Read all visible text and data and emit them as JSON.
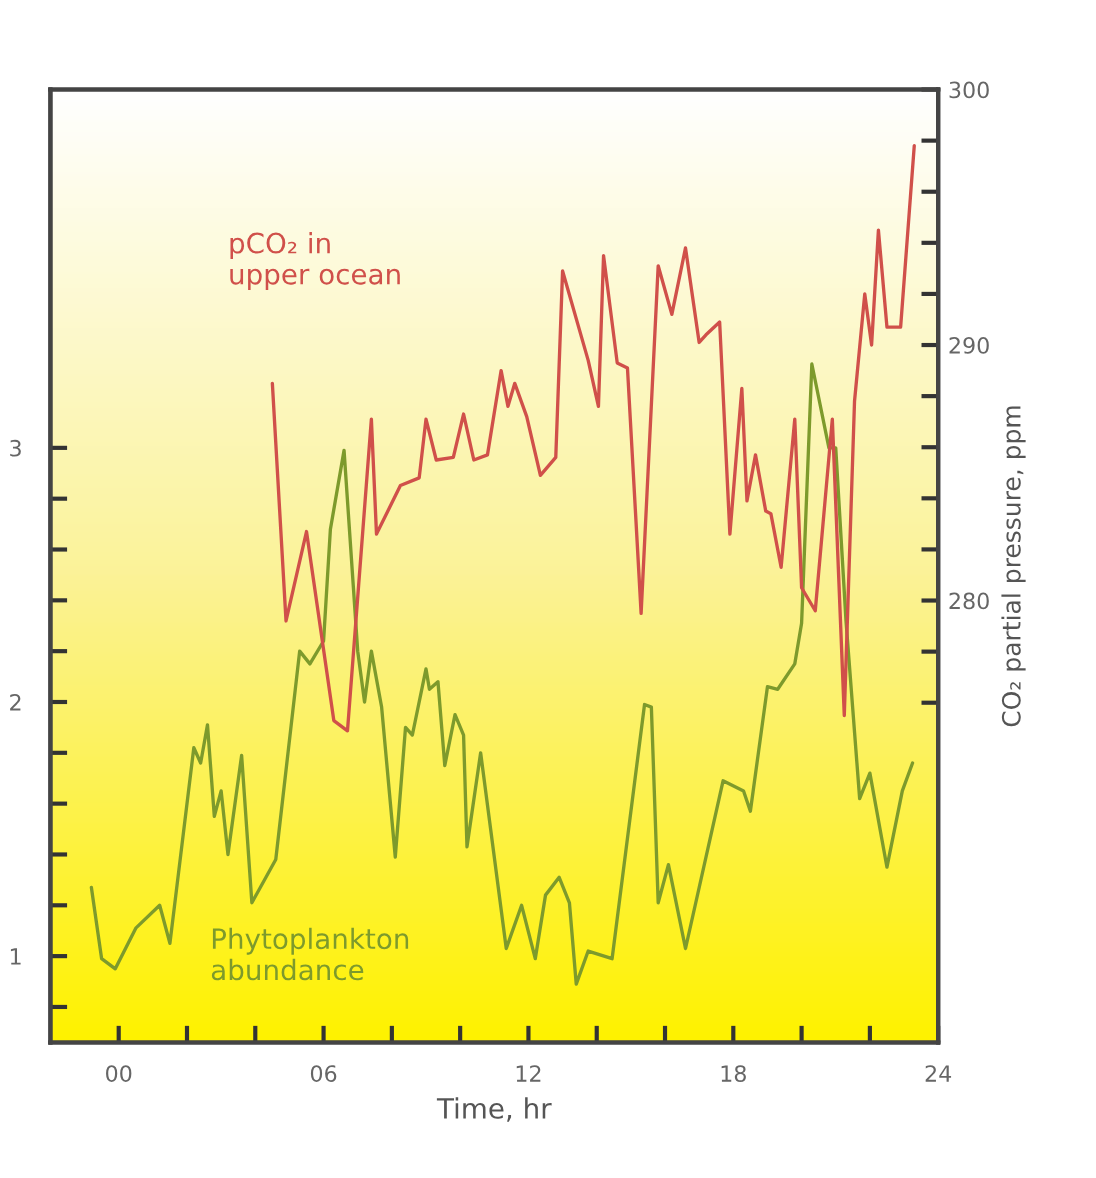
{
  "chart_data": {
    "type": "line",
    "xlabel": "Time, hr",
    "y2label": "CO₂ partial pressure, ppm",
    "xlim": [
      -2,
      24
    ],
    "xticks": [
      {
        "value": 0,
        "label": "00"
      },
      {
        "value": 2,
        "label": null
      },
      {
        "value": 4,
        "label": null
      },
      {
        "value": 6,
        "label": "06"
      },
      {
        "value": 8,
        "label": null
      },
      {
        "value": 10,
        "label": null
      },
      {
        "value": 12,
        "label": "12"
      },
      {
        "value": 14,
        "label": null
      },
      {
        "value": 16,
        "label": null
      },
      {
        "value": 18,
        "label": "18"
      },
      {
        "value": 20,
        "label": null
      },
      {
        "value": 22,
        "label": null
      },
      {
        "value": 24,
        "label": "24"
      }
    ],
    "ylim": [
      0.66,
      4.41
    ],
    "yticks": [
      {
        "value": 0.8,
        "label": null
      },
      {
        "value": 1,
        "label": "1"
      },
      {
        "value": 1.2,
        "label": null
      },
      {
        "value": 1.4,
        "label": null
      },
      {
        "value": 1.6,
        "label": null
      },
      {
        "value": 1.8,
        "label": null
      },
      {
        "value": 2,
        "label": "2"
      },
      {
        "value": 2.2,
        "label": null
      },
      {
        "value": 2.4,
        "label": null
      },
      {
        "value": 2.6,
        "label": null
      },
      {
        "value": 2.8,
        "label": null
      },
      {
        "value": 3,
        "label": "3"
      }
    ],
    "y2lim": [
      262.7,
      300
    ],
    "y2ticks": [
      {
        "value": 276,
        "label": null
      },
      {
        "value": 278,
        "label": null
      },
      {
        "value": 280,
        "label": "280"
      },
      {
        "value": 282,
        "label": null
      },
      {
        "value": 284,
        "label": null
      },
      {
        "value": 286,
        "label": null
      },
      {
        "value": 288,
        "label": null
      },
      {
        "value": 290,
        "label": "290"
      },
      {
        "value": 292,
        "label": null
      },
      {
        "value": 294,
        "label": null
      },
      {
        "value": 296,
        "label": null
      },
      {
        "value": 298,
        "label": null
      },
      {
        "value": 300,
        "label": "300"
      }
    ],
    "grid": false,
    "legend": false,
    "series": [
      {
        "name": "Phytoplankton\nabundance",
        "color": "#7d9a2c",
        "x": [
          -0.8,
          -0.5,
          -0.1,
          0.5,
          1.2,
          1.5,
          2.2,
          2.4,
          2.6,
          2.8,
          3.0,
          3.2,
          3.6,
          3.9,
          4.6,
          5.3,
          5.6,
          6.0,
          6.2,
          6.6,
          7.0,
          7.2,
          7.4,
          7.7,
          8.1,
          8.4,
          8.6,
          9.0,
          9.1,
          9.35,
          9.55,
          9.85,
          10.1,
          10.2,
          10.6,
          11.35,
          11.8,
          12.2,
          12.5,
          12.9,
          13.2,
          13.4,
          13.75,
          14.45,
          15.4,
          15.6,
          15.8,
          16.1,
          16.6,
          17.7,
          18.3,
          18.5,
          19.0,
          19.3,
          19.8,
          20.0,
          20.3,
          20.8,
          21.0,
          21.3,
          21.7,
          22.0,
          22.5,
          22.95,
          23.25
        ],
        "values": [
          1.27,
          0.99,
          0.95,
          1.11,
          1.2,
          1.05,
          1.82,
          1.76,
          1.91,
          1.55,
          1.65,
          1.4,
          1.79,
          1.21,
          1.38,
          2.2,
          2.15,
          2.24,
          2.68,
          2.99,
          2.2,
          2.0,
          2.2,
          1.98,
          1.39,
          1.9,
          1.87,
          2.13,
          2.05,
          2.08,
          1.75,
          1.95,
          1.87,
          1.43,
          1.8,
          1.03,
          1.2,
          0.99,
          1.24,
          1.31,
          1.21,
          0.89,
          1.02,
          0.99,
          1.99,
          1.98,
          1.21,
          1.36,
          1.03,
          1.69,
          1.65,
          1.57,
          2.06,
          2.05,
          2.15,
          2.31,
          3.33,
          3.0,
          3.0,
          2.32,
          1.62,
          1.72,
          1.35,
          1.65,
          1.76
        ]
      },
      {
        "name": "pCO₂ in\nupper ocean",
        "axis": "y2",
        "color": "#d0504a",
        "x": [
          4.5,
          4.9,
          5.5,
          6.3,
          6.7,
          7.4,
          7.55,
          8.25,
          8.8,
          9.0,
          9.3,
          9.8,
          10.1,
          10.4,
          10.8,
          11.2,
          11.4,
          11.6,
          11.95,
          12.35,
          12.8,
          13.0,
          13.75,
          14.05,
          14.2,
          14.6,
          14.9,
          15.3,
          15.8,
          16.2,
          16.6,
          17.0,
          17.2,
          17.6,
          17.9,
          18.25,
          18.4,
          18.65,
          18.95,
          19.1,
          19.4,
          19.8,
          20.0,
          20.4,
          20.9,
          21.25,
          21.55,
          21.85,
          22.05,
          22.25,
          22.5,
          22.9,
          23.3
        ],
        "values": [
          288.5,
          279.2,
          282.7,
          275.3,
          274.9,
          287.1,
          282.6,
          284.5,
          284.8,
          287.1,
          285.5,
          285.6,
          287.3,
          285.5,
          285.7,
          289.0,
          287.6,
          288.5,
          287.2,
          284.9,
          285.6,
          292.9,
          289.4,
          287.6,
          293.5,
          289.3,
          289.1,
          279.5,
          293.1,
          291.2,
          293.8,
          290.1,
          290.4,
          290.9,
          282.6,
          288.3,
          283.9,
          285.7,
          283.5,
          283.4,
          281.3,
          287.1,
          280.5,
          279.6,
          287.1,
          275.5,
          287.8,
          292.0,
          290.0,
          294.5,
          290.7,
          290.7,
          297.8
        ]
      }
    ]
  }
}
